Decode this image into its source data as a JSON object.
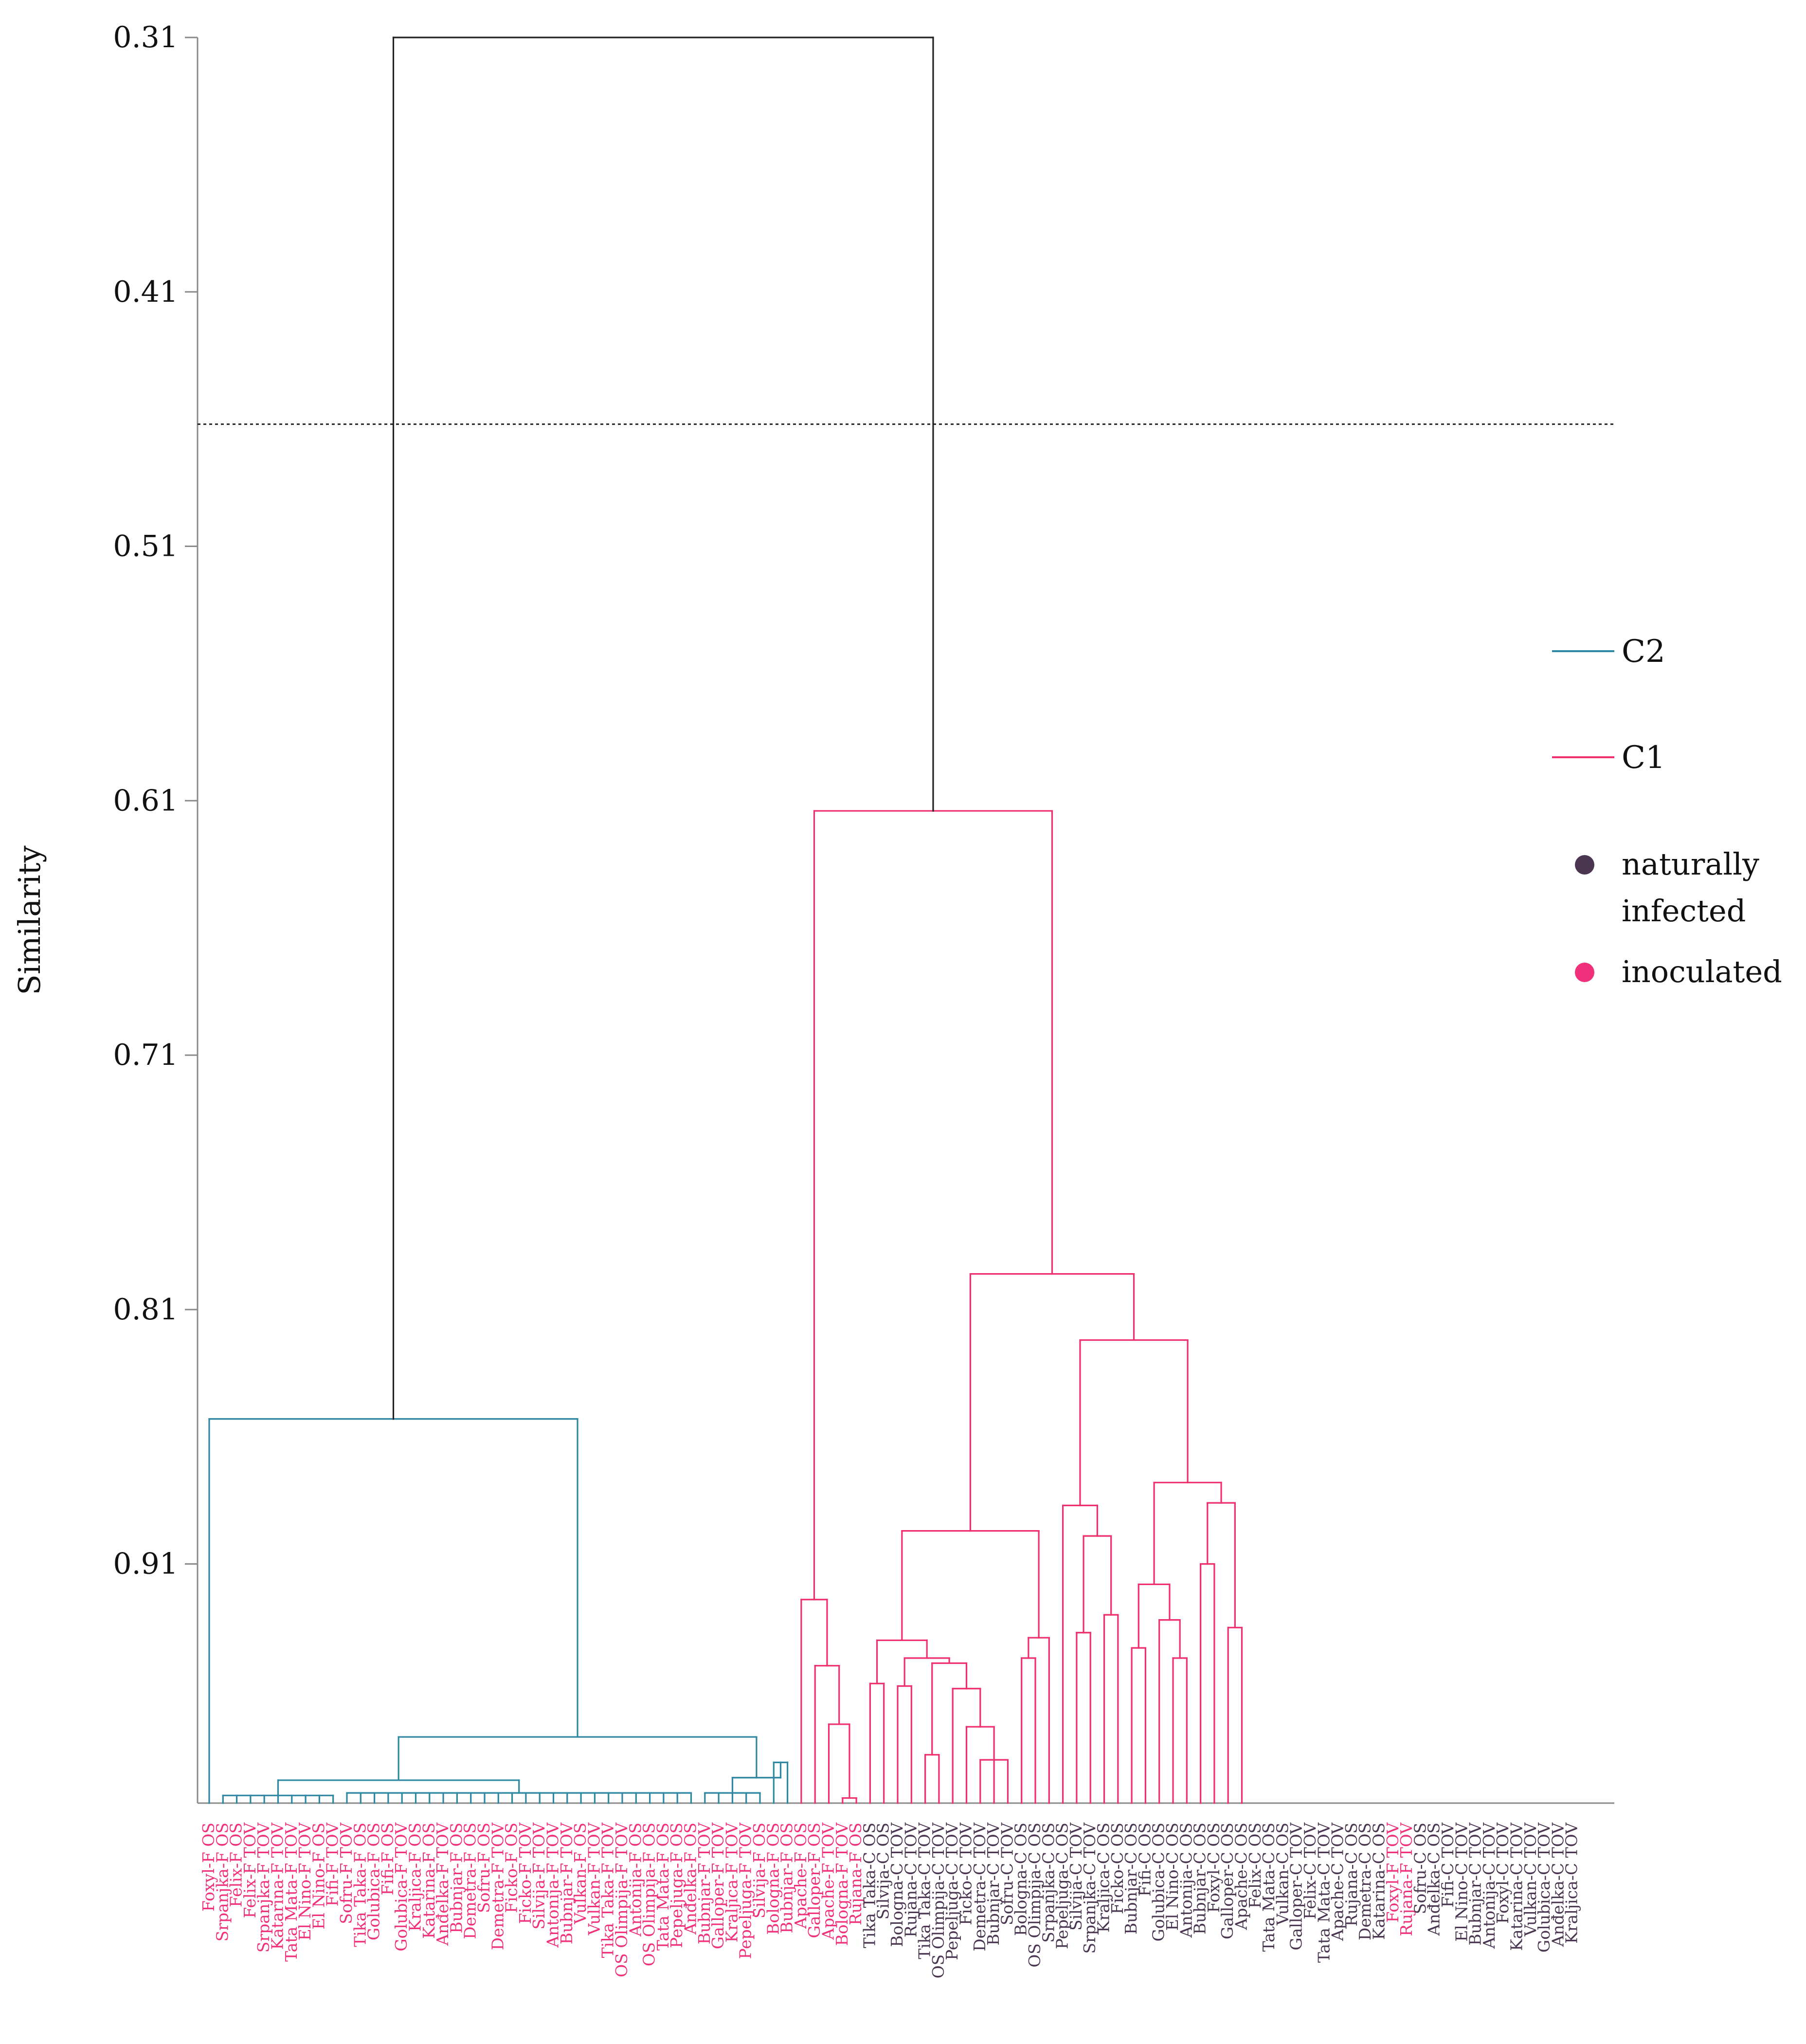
{
  "chart_data": {
    "type": "dendrogram",
    "ylabel": "Similarity",
    "ylim": [
      0.31,
      1.004
    ],
    "y_ticks": [
      "0.31",
      "0.41",
      "0.51",
      "0.61",
      "0.71",
      "0.81",
      "0.91"
    ],
    "cut_line_similarity": 0.462,
    "colors": {
      "C2": "#2e87a3",
      "C1": "#f0306d",
      "root": "#222222",
      "naturally_infected": "#4b3652",
      "inoculated": "#f0307a",
      "axis": "#8a8a8a"
    },
    "legend": {
      "c2_label": "C2",
      "c1_label": "C1",
      "natural_line1": "naturally",
      "natural_line2": "infected",
      "inoculated_label": "inoculated"
    },
    "leaves": [
      {
        "label": "Foxyl-F OS",
        "group": "inoculated"
      },
      {
        "label": "Srpanjka-F OS",
        "group": "inoculated"
      },
      {
        "label": "Felix-F OS",
        "group": "inoculated"
      },
      {
        "label": "Felix-F TOV",
        "group": "inoculated"
      },
      {
        "label": "Srpanjka-F TOV",
        "group": "inoculated"
      },
      {
        "label": "Katarina-F TOV",
        "group": "inoculated"
      },
      {
        "label": "Tata Mata-F TOV",
        "group": "inoculated"
      },
      {
        "label": "El Nino-F TOV",
        "group": "inoculated"
      },
      {
        "label": "El Nino-F OS",
        "group": "inoculated"
      },
      {
        "label": "Fifi-F TOV",
        "group": "inoculated"
      },
      {
        "label": "Sofru-F TOV",
        "group": "inoculated"
      },
      {
        "label": "Tika Taka-F OS",
        "group": "inoculated"
      },
      {
        "label": "Golubica-F OS",
        "group": "inoculated"
      },
      {
        "label": "Fifi-F OS",
        "group": "inoculated"
      },
      {
        "label": "Golubica-F TOV",
        "group": "inoculated"
      },
      {
        "label": "Kraljica-F OS",
        "group": "inoculated"
      },
      {
        "label": "Katarina-F OS",
        "group": "inoculated"
      },
      {
        "label": "Anđelka-F TOV",
        "group": "inoculated"
      },
      {
        "label": "Bubnjar-F OS",
        "group": "inoculated"
      },
      {
        "label": "Demetra-F OS",
        "group": "inoculated"
      },
      {
        "label": "Sofru-F OS",
        "group": "inoculated"
      },
      {
        "label": "Demetra-F TOV",
        "group": "inoculated"
      },
      {
        "label": "Ficko-F OS",
        "group": "inoculated"
      },
      {
        "label": "Ficko-F TOV",
        "group": "inoculated"
      },
      {
        "label": "Silvija-F TOV",
        "group": "inoculated"
      },
      {
        "label": "Antonija-F TOV",
        "group": "inoculated"
      },
      {
        "label": "Bubnjar-F TOV",
        "group": "inoculated"
      },
      {
        "label": "Vulkan-F OS",
        "group": "inoculated"
      },
      {
        "label": "Vulkan-F TOV",
        "group": "inoculated"
      },
      {
        "label": "Tika Taka-F TOV",
        "group": "inoculated"
      },
      {
        "label": "OS Olimpija-F TOV",
        "group": "inoculated"
      },
      {
        "label": "Antonija-F OS",
        "group": "inoculated"
      },
      {
        "label": "OS Olimpija-F OS",
        "group": "inoculated"
      },
      {
        "label": "Tata Mata-F OS",
        "group": "inoculated"
      },
      {
        "label": "Pepeljuga-F OS",
        "group": "inoculated"
      },
      {
        "label": "Anđelka-F OS",
        "group": "inoculated"
      },
      {
        "label": "Bubnjar-F TOV",
        "group": "inoculated"
      },
      {
        "label": "Galloper-F TOV",
        "group": "inoculated"
      },
      {
        "label": "Kraljica-F TOV",
        "group": "inoculated"
      },
      {
        "label": "Pepeljuga-F TOV",
        "group": "inoculated"
      },
      {
        "label": "Silvija-F OS",
        "group": "inoculated"
      },
      {
        "label": "Bologna-F OS",
        "group": "inoculated"
      },
      {
        "label": "Bubnjar-F OS",
        "group": "inoculated"
      },
      {
        "label": "Apache-F OS",
        "group": "inoculated"
      },
      {
        "label": "Galloper-F OS",
        "group": "inoculated"
      },
      {
        "label": "Apache-F TOV",
        "group": "inoculated"
      },
      {
        "label": "Bologna-F TOV",
        "group": "inoculated"
      },
      {
        "label": "Rujana-F OS",
        "group": "inoculated"
      },
      {
        "label": "Tika Taka-C OS",
        "group": "natural"
      },
      {
        "label": "Silvija-C OS",
        "group": "natural"
      },
      {
        "label": "Bologna-C TOV",
        "group": "natural"
      },
      {
        "label": "Rujana-C TOV",
        "group": "natural"
      },
      {
        "label": "Tika Taka-C TOV",
        "group": "natural"
      },
      {
        "label": "OS Olimpija-C TOV",
        "group": "natural"
      },
      {
        "label": "Pepeljuga-C TOV",
        "group": "natural"
      },
      {
        "label": "Ficko-C TOV",
        "group": "natural"
      },
      {
        "label": "Demetra-C TOV",
        "group": "natural"
      },
      {
        "label": "Bubnjar-C TOV",
        "group": "natural"
      },
      {
        "label": "Sofru-C TOV",
        "group": "natural"
      },
      {
        "label": "Bologna-C OS",
        "group": "natural"
      },
      {
        "label": "OS Olimpija-C OS",
        "group": "natural"
      },
      {
        "label": "Srpanjka-C OS",
        "group": "natural"
      },
      {
        "label": "Pepeljuga-C OS",
        "group": "natural"
      },
      {
        "label": "Silvija-C TOV",
        "group": "natural"
      },
      {
        "label": "Srpanjka-C TOV",
        "group": "natural"
      },
      {
        "label": "Kraljica-C OS",
        "group": "natural"
      },
      {
        "label": "Ficko-C OS",
        "group": "natural"
      },
      {
        "label": "Bubnjar-C OS",
        "group": "natural"
      },
      {
        "label": "Fifi-C OS",
        "group": "natural"
      },
      {
        "label": "Golubica-C OS",
        "group": "natural"
      },
      {
        "label": "El Nino-C OS",
        "group": "natural"
      },
      {
        "label": "Antonija-C OS",
        "group": "natural"
      },
      {
        "label": "Bubnjar-C OS",
        "group": "natural"
      },
      {
        "label": "Foxyl-C OS",
        "group": "natural"
      },
      {
        "label": "Galloper-C OS",
        "group": "natural"
      },
      {
        "label": "Apache-C OS",
        "group": "natural"
      },
      {
        "label": "Felix-C OS",
        "group": "natural"
      },
      {
        "label": "Tata Mata-C OS",
        "group": "natural"
      },
      {
        "label": "Vulkan-C OS",
        "group": "natural"
      },
      {
        "label": "Galloper-C TOV",
        "group": "natural"
      },
      {
        "label": "Felix-C TOV",
        "group": "natural"
      },
      {
        "label": "Tata Mata-C TOV",
        "group": "natural"
      },
      {
        "label": "Apache-C TOV",
        "group": "natural"
      },
      {
        "label": "Rujana-C OS",
        "group": "natural"
      },
      {
        "label": "Demetra-C OS",
        "group": "natural"
      },
      {
        "label": "Katarina-C OS",
        "group": "natural"
      },
      {
        "label": "Foxyl-F TOV",
        "group": "inoculated"
      },
      {
        "label": "Rujana-F TOV",
        "group": "inoculated"
      },
      {
        "label": "Sofru-C OS",
        "group": "natural"
      },
      {
        "label": "Anđelka-C OS",
        "group": "natural"
      },
      {
        "label": "Fifi-C TOV",
        "group": "natural"
      },
      {
        "label": "El Nino-C TOV",
        "group": "natural"
      },
      {
        "label": "Bubnjar-C TOV",
        "group": "natural"
      },
      {
        "label": "Antonija-C TOV",
        "group": "natural"
      },
      {
        "label": "Foxyl-C TOV",
        "group": "natural"
      },
      {
        "label": "Katarina-C TOV",
        "group": "natural"
      },
      {
        "label": "Vulkan-C TOV",
        "group": "natural"
      },
      {
        "label": "Golubica-C TOV",
        "group": "natural"
      },
      {
        "label": "Anđelka-C TOV",
        "group": "natural"
      },
      {
        "label": "Kraljica-C TOV",
        "group": "natural"
      }
    ],
    "tree": {
      "h": 0.31,
      "c": "root",
      "children": [
        {
          "h": 0.853,
          "c": "C2",
          "children": [
            {
              "leaf": 0
            },
            {
              "h": 0.978,
              "c": "C2",
              "children": [
                {
                  "h": 0.995,
                  "c": "C2",
                  "children": [
                    {
                      "span": [
                        1,
                        9
                      ],
                      "h": 1.001
                    },
                    {
                      "span": [
                        10,
                        35
                      ],
                      "h": 1.0
                    }
                  ]
                },
                {
                  "h": 0.994,
                  "c": "C2",
                  "children": [
                    {
                      "span": [
                        36,
                        40
                      ],
                      "h": 1.0
                    },
                    {
                      "h": 0.988,
                      "c": "C2",
                      "children": [
                        {
                          "leaf": 41
                        },
                        {
                          "leaf": 42
                        }
                      ]
                    }
                  ]
                }
              ]
            }
          ]
        },
        {
          "h": 0.614,
          "c": "C1",
          "children": [
            {
              "h": 0.924,
              "c": "C1",
              "children": [
                {
                  "leaf": 43
                },
                {
                  "h": 0.95,
                  "c": "C1",
                  "children": [
                    {
                      "leaf": 44
                    },
                    {
                      "h": 0.973,
                      "c": "C1",
                      "children": [
                        {
                          "leaf": 45
                        },
                        {
                          "span": [
                            46,
                            47
                          ],
                          "h": 1.002
                        }
                      ]
                    }
                  ]
                }
              ]
            },
            {
              "h": 0.796,
              "c": "C1",
              "children": [
                {
                  "h": 0.897,
                  "c": "C1",
                  "children": [
                    {
                      "h": 0.94,
                      "c": "C1",
                      "children": [
                        {
                          "h": 0.957,
                          "c": "C1",
                          "children": [
                            {
                              "leaf": 48
                            },
                            {
                              "leaf": 49
                            }
                          ]
                        },
                        {
                          "h": 0.947,
                          "c": "C1",
                          "children": [
                            {
                              "h": 0.958,
                              "c": "C1",
                              "children": [
                                {
                                  "leaf": 50
                                },
                                {
                                  "leaf": 51
                                }
                              ]
                            },
                            {
                              "h": 0.949,
                              "c": "C1",
                              "children": [
                                {
                                  "h": 0.985,
                                  "c": "C1",
                                  "children": [
                                    {
                                      "leaf": 52
                                    },
                                    {
                                      "leaf": 53
                                    }
                                  ]
                                },
                                {
                                  "h": 0.959,
                                  "c": "C1",
                                  "children": [
                                    {
                                      "leaf": 54
                                    },
                                    {
                                      "h": 0.974,
                                      "c": "C1",
                                      "children": [
                                        {
                                          "leaf": 55
                                        },
                                        {
                                          "span": [
                                            56,
                                            58
                                          ],
                                          "h": 0.987
                                        }
                                      ]
                                    }
                                  ]
                                }
                              ]
                            }
                          ]
                        }
                      ]
                    },
                    {
                      "h": 0.939,
                      "c": "C1",
                      "children": [
                        {
                          "h": 0.947,
                          "c": "C1",
                          "children": [
                            {
                              "leaf": 59
                            },
                            {
                              "leaf": 60
                            }
                          ]
                        },
                        {
                          "leaf": 61
                        }
                      ]
                    }
                  ]
                },
                {
                  "h": 0.822,
                  "c": "C1",
                  "children": [
                    {
                      "h": 0.887,
                      "c": "C1",
                      "children": [
                        {
                          "leaf": 62
                        },
                        {
                          "h": 0.899,
                          "c": "C1",
                          "children": [
                            {
                              "h": 0.937,
                              "c": "C1",
                              "children": [
                                {
                                  "leaf": 63
                                },
                                {
                                  "leaf": 64
                                }
                              ]
                            },
                            {
                              "h": 0.93,
                              "c": "C1",
                              "children": [
                                {
                                  "leaf": 65
                                },
                                {
                                  "leaf": 66
                                }
                              ]
                            }
                          ]
                        }
                      ]
                    },
                    {
                      "h": 0.878,
                      "c": "C1",
                      "children": [
                        {
                          "h": 0.918,
                          "c": "C1",
                          "children": [
                            {
                              "h": 0.943,
                              "c": "C1",
                              "children": [
                                {
                                  "leaf": 67
                                },
                                {
                                  "leaf": 68
                                }
                              ]
                            },
                            {
                              "h": 0.932,
                              "c": "C1",
                              "children": [
                                {
                                  "leaf": 69
                                },
                                {
                                  "h": 0.947,
                                  "c": "C1",
                                  "children": [
                                    {
                                      "leaf": 70
                                    },
                                    {
                                      "leaf": 71
                                    }
                                  ]
                                }
                              ]
                            }
                          ]
                        },
                        {
                          "h": 0.886,
                          "c": "C1",
                          "children": [
                            {
                              "h": 0.91,
                              "c": "C1",
                              "children": [
                                {
                                  "leaf": 72
                                },
                                {
                                  "leaf": 73
                                }
                              ]
                            },
                            {
                              "h": 0.935,
                              "c": "C1",
                              "children": [
                                {
                                  "leaf": 74
                                },
                                {
                                  "leaf": 75
                                }
                              ]
                            }
                          ]
                        }
                      ]
                    }
                  ]
                }
              ]
            }
          ]
        }
      ]
    }
  }
}
